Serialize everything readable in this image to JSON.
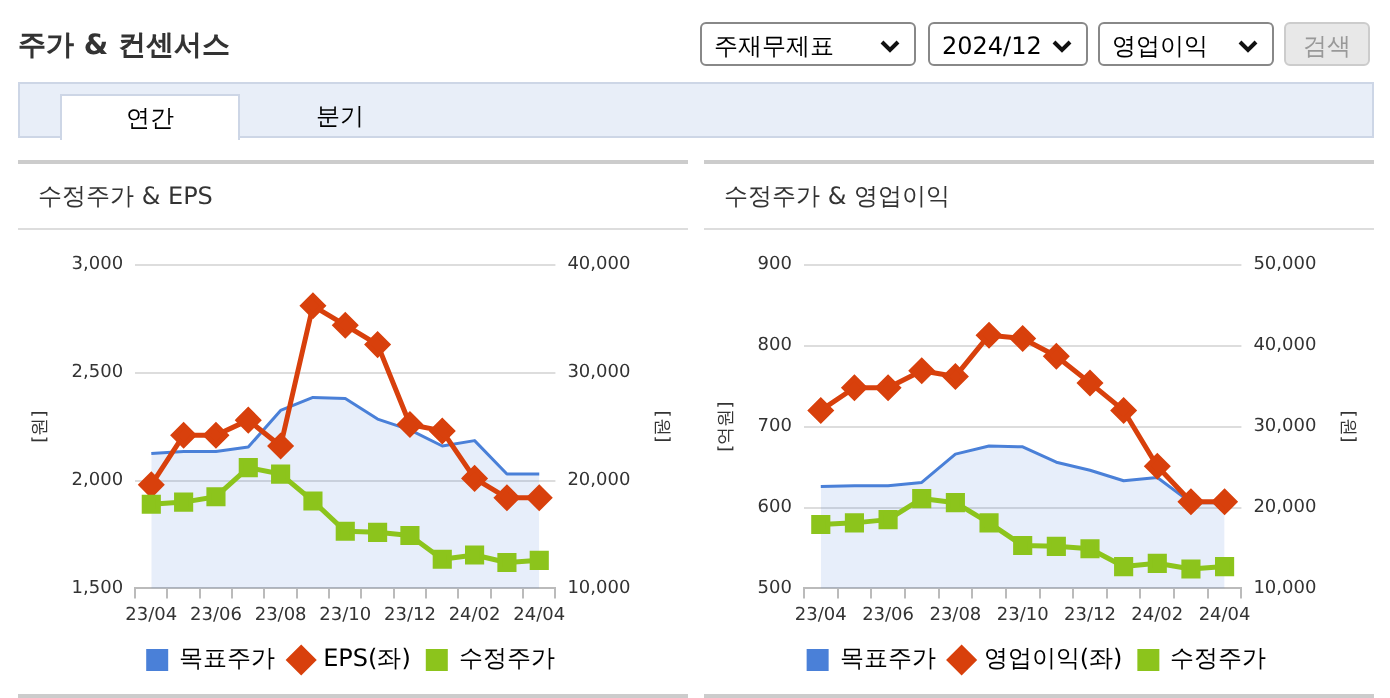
{
  "chart_data": [
    {
      "type": "other",
      "title": "주가 & 컨센서스",
      "annotations": [
        "주재무제표",
        "2024/12",
        "영업이익",
        "검색",
        "연간",
        "분기"
      ]
    },
    {
      "type": "line",
      "title": "수정주가 & EPS",
      "ylabel": "[원]",
      "y2label": "[원]",
      "categories": [
        "23/04",
        null,
        "23/06",
        null,
        "23/08",
        null,
        "23/10",
        null,
        "23/12",
        null,
        "24/02",
        null,
        "24/04"
      ],
      "ylim": [
        1500,
        3000
      ],
      "yticks": [
        {
          "value": 1500,
          "label": "1,500"
        },
        {
          "value": 2000,
          "label": "2,000"
        },
        {
          "value": 2500,
          "label": "2,500"
        },
        {
          "value": 3000,
          "label": "3,000"
        }
      ],
      "y2lim": [
        10000,
        40000
      ],
      "y2ticks": [
        {
          "value": 10000,
          "label": "10,000"
        },
        {
          "value": 20000,
          "label": "20,000"
        },
        {
          "value": 30000,
          "label": "30,000"
        },
        {
          "value": 40000,
          "label": "40,000"
        }
      ],
      "grid": "y",
      "legend": "bottom",
      "series": [
        {
          "name": "목표주가",
          "type": "area",
          "axis": "y2",
          "color": "#4a80d8",
          "marker": "none",
          "values": [
            22500,
            22700,
            22700,
            23100,
            26500,
            27700,
            27600,
            25700,
            24700,
            23200,
            23700,
            20600,
            20600
          ]
        },
        {
          "name": "EPS(좌)",
          "type": "line",
          "color": "#d8400c",
          "marker": "diamond",
          "values": [
            1980,
            2210,
            2210,
            2280,
            2160,
            2810,
            2720,
            2630,
            2260,
            2230,
            2010,
            1920,
            1920
          ]
        },
        {
          "name": "수정주가",
          "type": "line",
          "axis": "y2",
          "color": "#8cc41c",
          "marker": "square",
          "values": [
            17800,
            18000,
            18500,
            21200,
            20600,
            18100,
            15300,
            15200,
            14900,
            12700,
            13100,
            12400,
            12600
          ]
        }
      ]
    },
    {
      "type": "line",
      "title": "수정주가 & 영업이익",
      "ylabel": "[억원]",
      "y2label": "[원]",
      "categories": [
        "23/04",
        null,
        "23/06",
        null,
        "23/08",
        null,
        "23/10",
        null,
        "23/12",
        null,
        "24/02",
        null,
        "24/04"
      ],
      "ylim": [
        500,
        900
      ],
      "yticks": [
        500,
        600,
        700,
        800,
        900
      ],
      "y2lim": [
        10000,
        50000
      ],
      "y2ticks": [
        {
          "value": 10000,
          "label": "10,000"
        },
        {
          "value": 20000,
          "label": "20,000"
        },
        {
          "value": 30000,
          "label": "30,000"
        },
        {
          "value": 40000,
          "label": "40,000"
        },
        {
          "value": 50000,
          "label": "50,000"
        }
      ],
      "grid": "y",
      "legend": "bottom",
      "series": [
        {
          "name": "목표주가",
          "type": "area",
          "axis": "y2",
          "color": "#4a80d8",
          "marker": "none",
          "values": [
            22600,
            22700,
            22700,
            23100,
            26600,
            27600,
            27500,
            25600,
            24600,
            23300,
            23700,
            20600,
            20600
          ]
        },
        {
          "name": "영업이익(좌)",
          "type": "line",
          "color": "#d8400c",
          "marker": "diamond",
          "values": [
            720,
            748,
            748,
            769,
            762,
            813,
            809,
            787,
            754,
            720,
            651,
            607,
            607
          ]
        },
        {
          "name": "수정주가",
          "type": "line",
          "axis": "y2",
          "color": "#8cc41c",
          "marker": "square",
          "values": [
            17900,
            18100,
            18500,
            21100,
            20600,
            18100,
            15300,
            15200,
            14900,
            12700,
            13100,
            12400,
            12700
          ]
        }
      ]
    }
  ]
}
